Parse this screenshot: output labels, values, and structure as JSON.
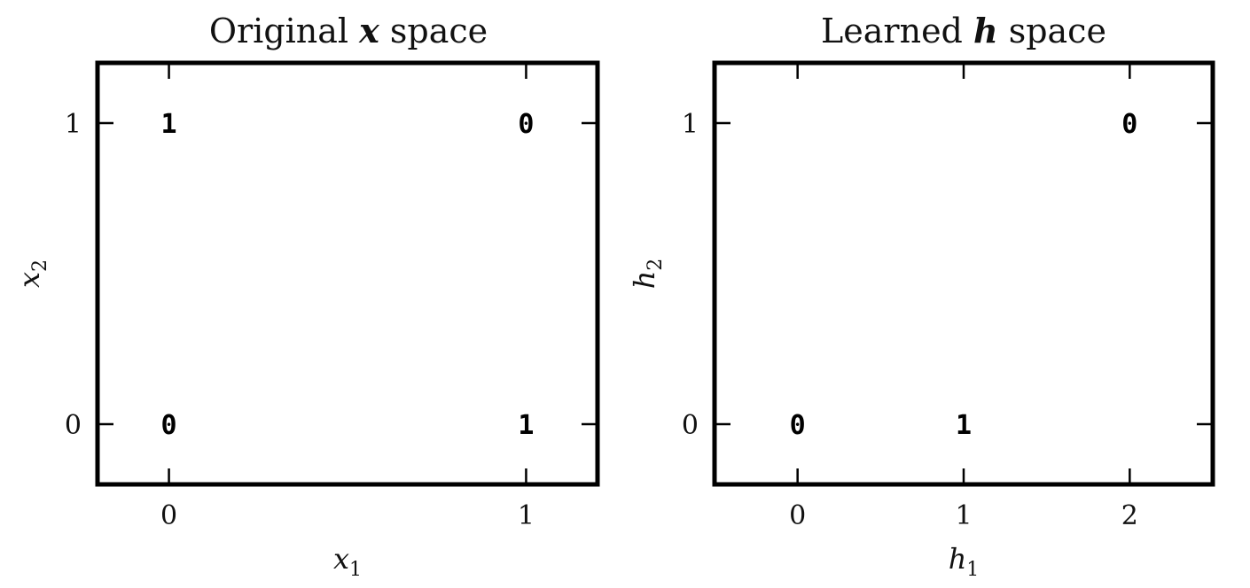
{
  "chart_data": [
    {
      "type": "scatter",
      "title_prefix": "Original ",
      "title_var": "x",
      "title_suffix": " space",
      "xlabel_var": "x",
      "xlabel_sub": "1",
      "ylabel_var": "x",
      "ylabel_sub": "2",
      "xlim": [
        -0.2,
        1.2
      ],
      "ylim": [
        -0.2,
        1.2
      ],
      "xticks": [
        0,
        1
      ],
      "yticks": [
        0,
        1
      ],
      "points": [
        {
          "x": 0,
          "y": 0,
          "label": "0"
        },
        {
          "x": 0,
          "y": 1,
          "label": "1"
        },
        {
          "x": 1,
          "y": 0,
          "label": "1"
        },
        {
          "x": 1,
          "y": 1,
          "label": "0"
        }
      ]
    },
    {
      "type": "scatter",
      "title_prefix": "Learned ",
      "title_var": "h",
      "title_suffix": " space",
      "xlabel_var": "h",
      "xlabel_sub": "1",
      "ylabel_var": "h",
      "ylabel_sub": "2",
      "xlim": [
        -0.5,
        2.5
      ],
      "ylim": [
        -0.2,
        1.2
      ],
      "xticks": [
        0,
        1,
        2
      ],
      "yticks": [
        0,
        1
      ],
      "points": [
        {
          "x": 0,
          "y": 0,
          "label": "0"
        },
        {
          "x": 1,
          "y": 0,
          "label": "1"
        },
        {
          "x": 2,
          "y": 1,
          "label": "0"
        }
      ]
    }
  ]
}
